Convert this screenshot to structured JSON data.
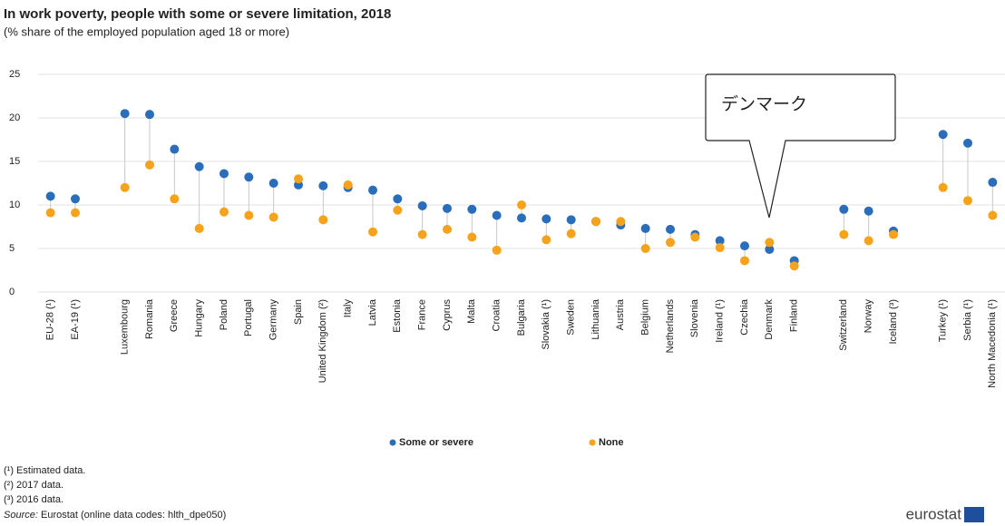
{
  "chart_data": {
    "type": "dot",
    "title": "In work poverty, people with some or severe limitation, 2018",
    "subtitle": "(% share of the employed population aged 18 or more)",
    "categories": [
      "EU-28 (¹)",
      "EA-19 (¹)",
      null,
      "Luxembourg",
      "Romania",
      "Greece",
      "Hungary",
      "Poland",
      "Portugal",
      "Germany",
      "Spain",
      "United Kingdom (²)",
      "Italy",
      "Latvia",
      "Estonia",
      "France",
      "Cyprus",
      "Malta",
      "Croatia",
      "Bulgaria",
      "Slovakia (¹)",
      "Sweden",
      "Lithuania",
      "Austria",
      "Belgium",
      "Netherlands",
      "Slovenia",
      "Ireland (¹)",
      "Czechia",
      "Denmark",
      "Finland",
      null,
      "Switzerland",
      "Norway",
      "Iceland (³)",
      null,
      "Turkey (¹)",
      "Serbia (¹)",
      "North Macedonia (¹)"
    ],
    "series": [
      {
        "name": "Some or severe",
        "color": "#2a6ebb",
        "values": [
          11.0,
          10.7,
          null,
          20.5,
          20.4,
          16.4,
          14.4,
          13.6,
          13.2,
          12.5,
          12.3,
          12.2,
          12.0,
          11.7,
          10.7,
          9.9,
          9.6,
          9.5,
          8.8,
          8.5,
          8.4,
          8.3,
          8.1,
          7.7,
          7.3,
          7.2,
          6.6,
          5.9,
          5.3,
          4.9,
          3.6,
          null,
          9.5,
          9.3,
          7.0,
          null,
          18.1,
          17.1,
          12.6
        ]
      },
      {
        "name": "None",
        "color": "#f6a21a",
        "values": [
          9.1,
          9.1,
          null,
          12.0,
          14.6,
          10.7,
          7.3,
          9.2,
          8.8,
          8.6,
          13.0,
          8.3,
          12.3,
          6.9,
          9.4,
          6.6,
          7.2,
          6.3,
          4.8,
          10.0,
          6.0,
          6.7,
          8.1,
          8.1,
          5.0,
          5.7,
          6.3,
          5.1,
          3.6,
          5.7,
          3.0,
          null,
          6.6,
          5.9,
          6.6,
          null,
          12.0,
          10.5,
          8.8
        ]
      }
    ],
    "ylim": [
      0,
      25
    ],
    "yticks": [
      0,
      5,
      10,
      15,
      20,
      25
    ],
    "grid": true,
    "annotation": "デンマーク",
    "footnotes": [
      "(¹) Estimated data.",
      "(²) 2017 data.",
      "(³) 2016 data."
    ],
    "source_label": "Source:",
    "source": "Eurostat (online data codes: hlth_dpe050)",
    "logo": "eurostat"
  }
}
